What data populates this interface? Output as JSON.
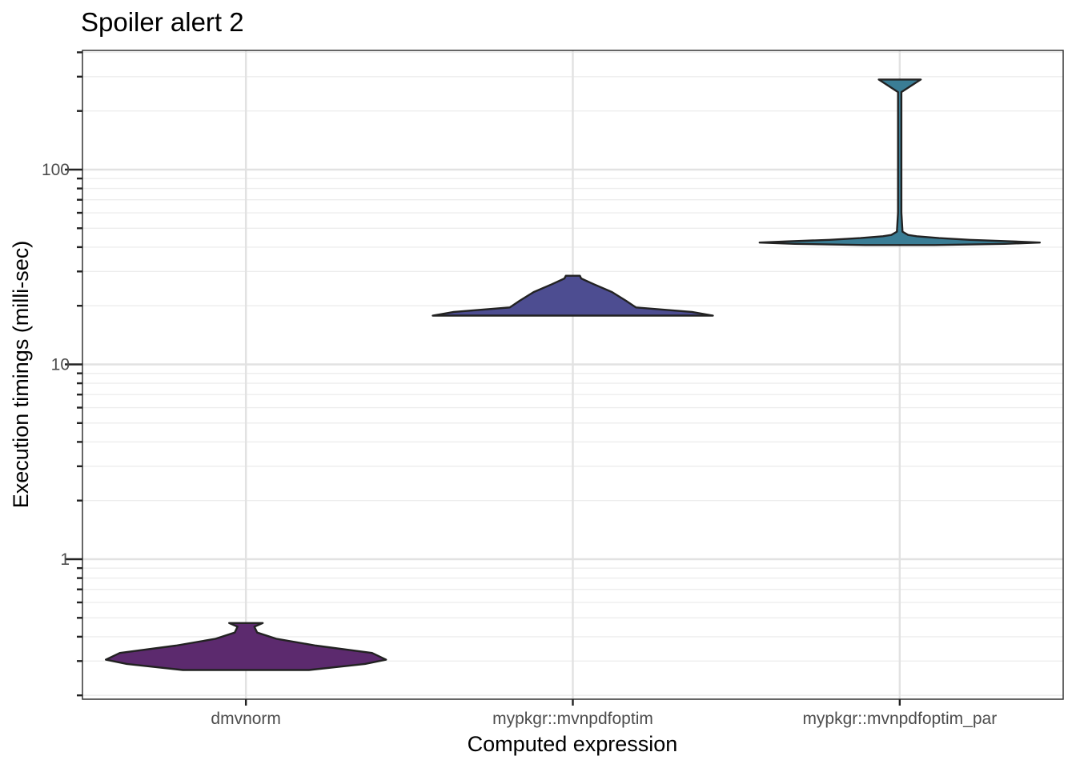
{
  "chart_data": {
    "type": "violin",
    "title": "Spoiler alert 2",
    "xlabel": "Computed expression",
    "ylabel": "Execution timings (milli-sec)",
    "y_scale": "log10",
    "ylim": [
      0.19,
      400
    ],
    "y_major_ticks": [
      1,
      10,
      100
    ],
    "y_tick_labels": [
      "1",
      "10",
      "100"
    ],
    "grid": true,
    "categories": [
      "dmvnorm",
      "mypkgr::mvnpdfoptim",
      "mypkgr::mvnpdfoptim_par"
    ],
    "series": [
      {
        "category": "dmvnorm",
        "color": "#5c2a6e",
        "min": 0.27,
        "max": 0.47,
        "profile": [
          [
            0.27,
            0.45
          ],
          [
            0.29,
            0.85
          ],
          [
            0.305,
            1.0
          ],
          [
            0.33,
            0.9
          ],
          [
            0.36,
            0.5
          ],
          [
            0.39,
            0.22
          ],
          [
            0.42,
            0.08
          ],
          [
            0.45,
            0.06
          ],
          [
            0.47,
            0.12
          ]
        ]
      },
      {
        "category": "mypkgr::mvnpdfoptim",
        "color": "#4d4d91",
        "min": 17.8,
        "max": 28.5,
        "profile": [
          [
            17.8,
            1.0
          ],
          [
            18.6,
            0.85
          ],
          [
            19.6,
            0.45
          ],
          [
            21.2,
            0.38
          ],
          [
            23.5,
            0.28
          ],
          [
            25.8,
            0.15
          ],
          [
            27.6,
            0.06
          ],
          [
            28.5,
            0.05
          ]
        ]
      },
      {
        "category": "mypkgr::mvnpdfoptim_par",
        "color": "#3a7d95",
        "min": 41.0,
        "max": 290,
        "profile": [
          [
            41.0,
            0.25
          ],
          [
            41.6,
            0.75
          ],
          [
            42.2,
            1.0
          ],
          [
            42.8,
            0.8
          ],
          [
            43.6,
            0.5
          ],
          [
            44.5,
            0.28
          ],
          [
            45.5,
            0.12
          ],
          [
            46.2,
            0.06
          ],
          [
            48,
            0.02
          ],
          [
            60,
            0.012
          ],
          [
            120,
            0.012
          ],
          [
            250,
            0.012
          ],
          [
            290,
            0.15
          ]
        ]
      }
    ]
  }
}
